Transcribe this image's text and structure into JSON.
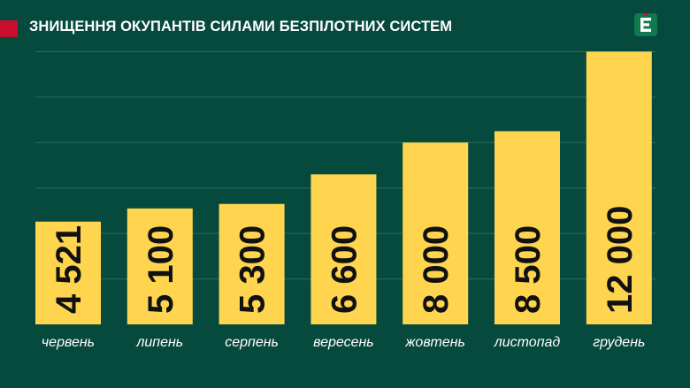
{
  "chart_data": {
    "type": "bar",
    "title": "ЗНИЩЕННЯ ОКУПАНТІВ СИЛАМИ БЕЗПІЛОТНИХ СИСТЕМ",
    "categories": [
      "червень",
      "липень",
      "серпень",
      "вересень",
      "жовтень",
      "листопад",
      "грудень"
    ],
    "values": [
      4521,
      5100,
      5300,
      6600,
      8000,
      8500,
      12000
    ],
    "value_labels": [
      "4 521",
      "5 100",
      "5 300",
      "6 600",
      "8 000",
      "8 500",
      "12 000"
    ],
    "xlabel": "",
    "ylabel": "",
    "ylim": [
      0,
      14000
    ],
    "grid": true,
    "colors": {
      "bar": "#ffd44f",
      "background": "#06493d",
      "grid": "#2c6c61",
      "marker": "#c8102e"
    }
  },
  "brand": {
    "logo_icon": "e-letter-logo-icon"
  }
}
